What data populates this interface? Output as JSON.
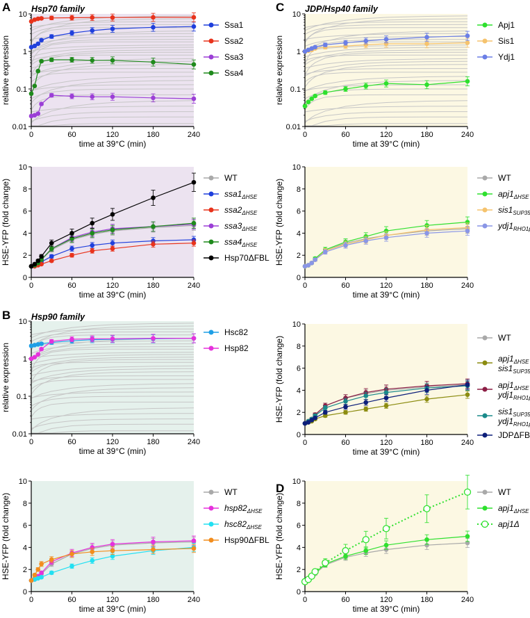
{
  "figure": {
    "panel_labels": {
      "A": "A",
      "B": "B",
      "C": "C",
      "D": "D"
    },
    "titles": {
      "A": "Hsp70 family",
      "B": "Hsp90 family",
      "C": "JDP/Hsp40 family"
    },
    "colors": {
      "purple_bg": "#ece3f0",
      "green_bg": "#e5f1ec",
      "yellow_bg": "#fcf8e3",
      "grey": "#b3b3b3",
      "bg_trace": "#c6c6c6"
    }
  },
  "chart_data": [
    {
      "id": "A1",
      "type": "line",
      "scale": "log",
      "xlabel": "time at 39°C (min)",
      "ylabel": "relative expression",
      "xlim": [
        0,
        240
      ],
      "ylim": [
        0.01,
        10
      ],
      "xticks": [
        "0",
        "60",
        "120",
        "180",
        "240"
      ],
      "yticks": [
        "0.01",
        "0.1",
        "1",
        "10"
      ],
      "x": [
        0,
        5,
        10,
        15,
        30,
        60,
        90,
        120,
        180,
        240
      ],
      "series": [
        {
          "name": "Ssa1",
          "color": "#1f3fdc",
          "values": [
            1.3,
            1.4,
            1.6,
            2.0,
            2.5,
            3.1,
            3.6,
            4.0,
            4.4,
            4.6
          ]
        },
        {
          "name": "Ssa2",
          "color": "#e8331c",
          "values": [
            6.3,
            7.0,
            7.4,
            7.6,
            7.8,
            7.9,
            8.0,
            8.0,
            8.1,
            8.1
          ]
        },
        {
          "name": "Ssa3",
          "color": "#9b3fd6",
          "values": [
            0.019,
            0.02,
            0.022,
            0.04,
            0.068,
            0.064,
            0.062,
            0.062,
            0.058,
            0.055
          ]
        },
        {
          "name": "Ssa4",
          "color": "#1f8a1c",
          "values": [
            0.075,
            0.12,
            0.3,
            0.55,
            0.6,
            0.6,
            0.58,
            0.58,
            0.52,
            0.45
          ]
        }
      ]
    },
    {
      "id": "A2",
      "type": "line",
      "xlabel": "time at 39°C (min)",
      "ylabel": "HSE-YFP (fold change)",
      "xlim": [
        0,
        240
      ],
      "ylim": [
        0,
        10
      ],
      "xticks": [
        "0",
        "60",
        "120",
        "180",
        "240"
      ],
      "yticks": [
        "0",
        "2",
        "4",
        "6",
        "8",
        "10"
      ],
      "x": [
        0,
        5,
        10,
        15,
        30,
        60,
        90,
        120,
        180,
        240
      ],
      "series": [
        {
          "name": "WT",
          "color": "#a9a9a9",
          "values": [
            1.0,
            1.1,
            1.3,
            1.6,
            2.5,
            3.4,
            3.9,
            4.2,
            4.5,
            4.7
          ]
        },
        {
          "name": "ssa1",
          "sub": "ΔHSE",
          "italic": true,
          "color": "#1f3fdc",
          "values": [
            1.0,
            1.1,
            1.2,
            1.4,
            1.9,
            2.6,
            2.9,
            3.1,
            3.3,
            3.4
          ]
        },
        {
          "name": "ssa2",
          "sub": "ΔHSE",
          "italic": true,
          "color": "#e8331c",
          "values": [
            1.0,
            1.0,
            1.1,
            1.2,
            1.5,
            2.0,
            2.4,
            2.6,
            3.0,
            3.1
          ]
        },
        {
          "name": "ssa3",
          "sub": "ΔHSE",
          "italic": true,
          "color": "#9b3fd6",
          "values": [
            1.0,
            1.1,
            1.3,
            1.6,
            2.6,
            3.6,
            4.1,
            4.4,
            4.6,
            4.8
          ]
        },
        {
          "name": "ssa4",
          "sub": "ΔHSE",
          "italic": true,
          "color": "#1f8a1c",
          "values": [
            1.0,
            1.1,
            1.3,
            1.6,
            2.6,
            3.5,
            4.0,
            4.3,
            4.6,
            4.9
          ]
        },
        {
          "name": "Hsp70ΔFBL",
          "color": "#000000",
          "values": [
            1.0,
            1.2,
            1.5,
            1.9,
            3.1,
            4.0,
            4.9,
            5.7,
            7.2,
            8.6
          ]
        }
      ]
    },
    {
      "id": "B1",
      "type": "line",
      "scale": "log",
      "xlabel": "time at 39°C (min)",
      "ylabel": "relative expression",
      "xlim": [
        0,
        240
      ],
      "ylim": [
        0.01,
        10
      ],
      "xticks": [
        "0",
        "60",
        "120",
        "180",
        "240"
      ],
      "yticks": [
        "0.01",
        "0.1",
        "1",
        "10"
      ],
      "x": [
        0,
        5,
        10,
        15,
        30,
        60,
        90,
        120,
        180,
        240
      ],
      "series": [
        {
          "name": "Hsc82",
          "color": "#1e9fe6",
          "values": [
            2.2,
            2.3,
            2.4,
            2.5,
            2.7,
            3.0,
            3.2,
            3.3,
            3.4,
            3.5
          ]
        },
        {
          "name": "Hsp82",
          "color": "#e532dc",
          "values": [
            1.0,
            1.1,
            1.3,
            1.8,
            2.9,
            3.3,
            3.4,
            3.4,
            3.5,
            3.5
          ]
        }
      ]
    },
    {
      "id": "B2",
      "type": "line",
      "xlabel": "time at 39°C (min)",
      "ylabel": "HSE-YFP (fold change)",
      "xlim": [
        0,
        240
      ],
      "ylim": [
        0,
        10
      ],
      "xticks": [
        "0",
        "60",
        "120",
        "180",
        "240"
      ],
      "yticks": [
        "0",
        "2",
        "4",
        "6",
        "8",
        "10"
      ],
      "x": [
        0,
        5,
        10,
        15,
        30,
        60,
        90,
        120,
        180,
        240
      ],
      "series": [
        {
          "name": "WT",
          "color": "#a9a9a9",
          "values": [
            1.0,
            1.1,
            1.3,
            1.6,
            2.5,
            3.4,
            3.9,
            4.2,
            4.4,
            4.5
          ]
        },
        {
          "name": "hsp82",
          "sub": "ΔHSE",
          "italic": true,
          "color": "#e532dc",
          "values": [
            1.0,
            1.1,
            1.4,
            1.7,
            2.7,
            3.5,
            4.0,
            4.3,
            4.5,
            4.6
          ]
        },
        {
          "name": "hsc82",
          "sub": "ΔHSE",
          "italic": true,
          "color": "#22e0f2",
          "values": [
            1.0,
            1.1,
            1.2,
            1.3,
            1.7,
            2.3,
            2.8,
            3.2,
            3.7,
            4.0
          ]
        },
        {
          "name": "Hsp90ΔFBL",
          "color": "#f28d1e",
          "values": [
            1.0,
            1.5,
            2.0,
            2.5,
            2.9,
            3.4,
            3.6,
            3.7,
            3.8,
            3.9
          ]
        }
      ]
    },
    {
      "id": "C1",
      "type": "line",
      "scale": "log",
      "xlabel": "time at 39°C (min)",
      "ylabel": "relative expression",
      "xlim": [
        0,
        240
      ],
      "ylim": [
        0.01,
        10
      ],
      "xticks": [
        "0",
        "60",
        "120",
        "180",
        "240"
      ],
      "yticks": [
        "0.01",
        "0.1",
        "1",
        "10"
      ],
      "x": [
        0,
        5,
        10,
        15,
        30,
        60,
        90,
        120,
        180,
        240
      ],
      "series": [
        {
          "name": "Apj1",
          "color": "#2ee02e",
          "values": [
            0.035,
            0.045,
            0.055,
            0.065,
            0.08,
            0.1,
            0.12,
            0.14,
            0.13,
            0.16
          ]
        },
        {
          "name": "Sis1",
          "color": "#f5c36e",
          "values": [
            1.0,
            1.05,
            1.1,
            1.2,
            1.3,
            1.4,
            1.5,
            1.6,
            1.6,
            1.7
          ]
        },
        {
          "name": "Ydj1",
          "color": "#6b7fe6",
          "values": [
            1.0,
            1.1,
            1.2,
            1.3,
            1.5,
            1.7,
            1.9,
            2.1,
            2.4,
            2.6
          ]
        }
      ]
    },
    {
      "id": "C2",
      "type": "line",
      "xlabel": "time at 39°C (min)",
      "ylabel": "HSE-YFP (fold change)",
      "xlim": [
        0,
        240
      ],
      "ylim": [
        0,
        10
      ],
      "xticks": [
        "0",
        "60",
        "120",
        "180",
        "240"
      ],
      "yticks": [
        "0",
        "2",
        "4",
        "6",
        "8",
        "10"
      ],
      "x": [
        0,
        5,
        10,
        15,
        30,
        60,
        90,
        120,
        180,
        240
      ],
      "series": [
        {
          "name": "WT",
          "color": "#a9a9a9",
          "values": [
            1.0,
            1.1,
            1.3,
            1.6,
            2.4,
            3.1,
            3.5,
            3.8,
            4.2,
            4.4
          ]
        },
        {
          "name": "apj1",
          "sub": "ΔHSE",
          "italic": true,
          "color": "#2ee02e",
          "values": [
            1.0,
            1.1,
            1.3,
            1.7,
            2.5,
            3.2,
            3.7,
            4.2,
            4.7,
            5.0
          ]
        },
        {
          "name": "sis1",
          "sub": "SUP35pr",
          "italic": true,
          "color": "#f5c36e",
          "values": [
            1.0,
            1.1,
            1.3,
            1.6,
            2.4,
            3.0,
            3.4,
            3.8,
            4.3,
            4.5
          ]
        },
        {
          "name": "ydj1",
          "sub": "RHO1pr",
          "italic": true,
          "color": "#8a96e6",
          "values": [
            1.0,
            1.1,
            1.3,
            1.6,
            2.3,
            2.9,
            3.3,
            3.6,
            4.0,
            4.2
          ]
        }
      ]
    },
    {
      "id": "C3",
      "type": "line",
      "xlabel": "time at 39°C (min)",
      "ylabel": "HSE-YFP (fold change)",
      "xlim": [
        0,
        240
      ],
      "ylim": [
        0,
        10
      ],
      "xticks": [
        "0",
        "60",
        "120",
        "180",
        "240"
      ],
      "yticks": [
        "0",
        "2",
        "4",
        "6",
        "8",
        "10"
      ],
      "x": [
        0,
        5,
        10,
        15,
        30,
        60,
        90,
        120,
        180,
        240
      ],
      "series": [
        {
          "name": "WT",
          "color": "#a9a9a9",
          "values": [
            1.0,
            1.2,
            1.4,
            1.8,
            2.6,
            3.3,
            3.7,
            4.0,
            4.3,
            4.5
          ]
        },
        {
          "name": "apj1",
          "sub": "ΔHSE",
          "italic": true,
          "line2": "sis1",
          "sub2": "SUP35pr",
          "color": "#8c8c10",
          "values": [
            1.0,
            1.1,
            1.2,
            1.4,
            1.7,
            2.0,
            2.3,
            2.6,
            3.2,
            3.6
          ]
        },
        {
          "name": "apj1",
          "sub": "ΔHSE",
          "italic": true,
          "line2": "ydj1",
          "sub2": "RHO1pr",
          "color": "#8c1e45",
          "values": [
            1.0,
            1.2,
            1.4,
            1.8,
            2.6,
            3.3,
            3.8,
            4.1,
            4.4,
            4.6
          ]
        },
        {
          "name": "sis1",
          "sub": "SUP35pr",
          "italic": true,
          "line2": "ydj1",
          "sub2": "RHO1pr",
          "color": "#1a8a8a",
          "values": [
            1.0,
            1.2,
            1.4,
            1.7,
            2.4,
            3.0,
            3.5,
            3.8,
            4.2,
            4.4
          ]
        },
        {
          "name": "JDPΔFBL",
          "color": "#0d1f7a",
          "values": [
            1.0,
            1.1,
            1.3,
            1.5,
            2.0,
            2.5,
            2.9,
            3.3,
            4.0,
            4.5
          ]
        }
      ]
    },
    {
      "id": "D",
      "type": "line",
      "xlabel": "time at 39°C (min)",
      "ylabel": "HSE-YFP (fold change)",
      "xlim": [
        0,
        240
      ],
      "ylim": [
        0,
        10
      ],
      "xticks": [
        "0",
        "60",
        "120",
        "180",
        "240"
      ],
      "yticks": [
        "0",
        "2",
        "4",
        "6",
        "8",
        "10"
      ],
      "x": [
        0,
        5,
        10,
        15,
        30,
        60,
        90,
        120,
        180,
        240
      ],
      "series": [
        {
          "name": "WT",
          "color": "#a9a9a9",
          "values": [
            1.0,
            1.1,
            1.3,
            1.6,
            2.4,
            3.1,
            3.5,
            3.8,
            4.2,
            4.4
          ]
        },
        {
          "name": "apj1",
          "sub": "ΔHSE",
          "italic": true,
          "color": "#2ee02e",
          "values": [
            1.0,
            1.1,
            1.3,
            1.7,
            2.5,
            3.2,
            3.7,
            4.2,
            4.7,
            5.0
          ]
        },
        {
          "name": "apj1Δ",
          "italic": true,
          "dashed": true,
          "open": true,
          "color": "#2ee02e",
          "values": [
            0.9,
            1.1,
            1.4,
            1.8,
            2.6,
            3.7,
            4.7,
            5.7,
            7.5,
            9.0
          ]
        }
      ]
    }
  ]
}
